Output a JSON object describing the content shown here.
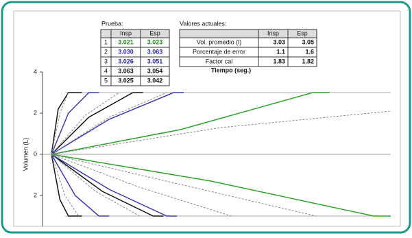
{
  "tables": {
    "prueba": {
      "label": "Prueba:",
      "header": [
        "Insp",
        "Esp"
      ],
      "rows": [
        {
          "index": "1",
          "cells": [
            "3.021",
            "3.023"
          ],
          "color": "#1a8a1a"
        },
        {
          "index": "2",
          "cells": [
            "3.030",
            "3.063"
          ],
          "color": "#2b2b9a"
        },
        {
          "index": "3",
          "cells": [
            "3.026",
            "3.051"
          ],
          "color": "#2b2b9a"
        },
        {
          "index": "4",
          "cells": [
            "3.063",
            "3.054"
          ],
          "color": "#111111"
        },
        {
          "index": "5",
          "cells": [
            "3.025",
            "3.042"
          ],
          "color": "#111111"
        }
      ]
    },
    "valores": {
      "label": "Valores actuales:",
      "header": [
        "Insp",
        "Esp"
      ],
      "rows": [
        {
          "name": "Vol. promedio (l)",
          "cells": [
            "3.03",
            "3.05"
          ]
        },
        {
          "name": "Porcentaje de error",
          "cells": [
            "1.1",
            "1.6"
          ]
        },
        {
          "name": "Factor cal",
          "cells": [
            "1.83",
            "1.82"
          ]
        }
      ]
    }
  },
  "chart_data": {
    "type": "line",
    "x_label": "Tiempo (seg.)",
    "y_label": "Volumen (L)",
    "xlim": [
      0,
      10
    ],
    "ylim": [
      -3.3,
      4
    ],
    "yticks": [
      4,
      2,
      0,
      {
        "value": -2,
        "label": "2"
      }
    ],
    "reference_lines": [
      3,
      -3
    ],
    "series": [
      {
        "color": "#111111",
        "dash": false,
        "x": [
          0,
          0.2,
          0.5,
          0.9
        ],
        "values": [
          0,
          2.2,
          3,
          3
        ]
      },
      {
        "color": "#3a3aa8",
        "dash": false,
        "x": [
          0,
          0.5,
          1.1,
          1.4
        ],
        "values": [
          0,
          2.0,
          3,
          3
        ]
      },
      {
        "color": "#111111",
        "dash": false,
        "x": [
          0,
          1.1,
          2.4,
          2.7
        ],
        "values": [
          0,
          1.8,
          3,
          3
        ]
      },
      {
        "color": "#3a3aa8",
        "dash": false,
        "x": [
          0,
          1.7,
          3.6,
          3.9
        ],
        "values": [
          0,
          1.7,
          3,
          3
        ]
      },
      {
        "color": "#2ea02e",
        "dash": false,
        "x": [
          0,
          3.8,
          7.7,
          8.2
        ],
        "values": [
          0,
          1.2,
          3,
          3
        ]
      },
      {
        "color": "#888888",
        "dash": true,
        "x": [
          0,
          0.25,
          0.5
        ],
        "values": [
          0,
          2.0,
          3
        ]
      },
      {
        "color": "#888888",
        "dash": true,
        "x": [
          0,
          1.0,
          2.0
        ],
        "values": [
          0,
          1.9,
          3
        ]
      },
      {
        "color": "#888888",
        "dash": true,
        "x": [
          0,
          1.7,
          3.4
        ],
        "values": [
          0,
          1.8,
          3
        ]
      },
      {
        "color": "#888888",
        "dash": true,
        "x": [
          0,
          5.0,
          10
        ],
        "values": [
          0,
          1.3,
          2.1
        ]
      },
      {
        "color": "#111111",
        "dash": false,
        "x": [
          0,
          0.25,
          0.5,
          0.9
        ],
        "values": [
          0,
          -2.2,
          -3,
          -3
        ]
      },
      {
        "color": "#3a3aa8",
        "dash": false,
        "x": [
          0,
          0.7,
          1.4,
          1.7
        ],
        "values": [
          0,
          -2.0,
          -3,
          -3
        ]
      },
      {
        "color": "#111111",
        "dash": false,
        "x": [
          0,
          1.5,
          3.0,
          3.3
        ],
        "values": [
          0,
          -1.8,
          -3,
          -3
        ]
      },
      {
        "color": "#3a3aa8",
        "dash": false,
        "x": [
          0,
          1.7,
          3.4,
          3.7
        ],
        "values": [
          0,
          -1.7,
          -3,
          -3
        ]
      },
      {
        "color": "#2ea02e",
        "dash": false,
        "x": [
          0,
          4.7,
          9.5,
          10
        ],
        "values": [
          0,
          -1.3,
          -3,
          -3
        ]
      },
      {
        "color": "#888888",
        "dash": true,
        "x": [
          0,
          0.4,
          0.8
        ],
        "values": [
          0,
          -2.0,
          -3
        ]
      },
      {
        "color": "#888888",
        "dash": true,
        "x": [
          0,
          1.3,
          2.6
        ],
        "values": [
          0,
          -1.8,
          -3
        ]
      },
      {
        "color": "#888888",
        "dash": true,
        "x": [
          0,
          2.6,
          5.3
        ],
        "values": [
          0,
          -1.6,
          -3
        ]
      },
      {
        "color": "#888888",
        "dash": true,
        "x": [
          0,
          3.9,
          7.8
        ],
        "values": [
          0,
          -1.5,
          -3
        ]
      }
    ]
  }
}
